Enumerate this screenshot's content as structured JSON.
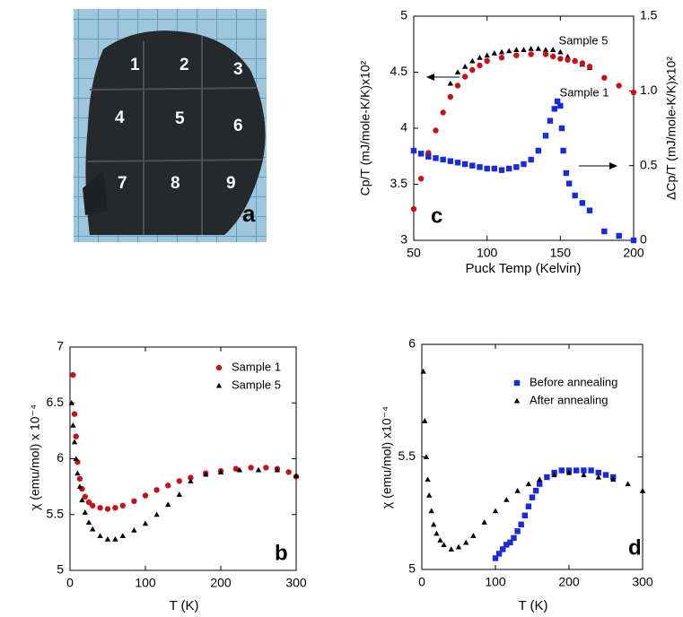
{
  "photo": {
    "labels": [
      "1",
      "2",
      "3",
      "4",
      "5",
      "6",
      "7",
      "8",
      "9"
    ],
    "panel_label": "a"
  },
  "chart_data": [
    {
      "type": "scatter",
      "panel_label": "c",
      "x_label": "Puck Temp (Kelvin)",
      "y_label": "Cp/T (mJ/mole-K/K)x10²",
      "y2_label": "ΔCp/T (mJ/mole-K/K)x10²",
      "xlim": [
        50,
        200
      ],
      "ylim": [
        3,
        5
      ],
      "y2lim": [
        0,
        1.5
      ],
      "xticks": [
        50,
        100,
        150,
        200
      ],
      "yticks": [
        3,
        3.5,
        4,
        4.5,
        5
      ],
      "y2ticks": [
        0,
        0.5,
        {
          "value": 1,
          "label": "1.0"
        },
        1.5
      ],
      "series": [
        {
          "name": "Sample 5",
          "color": "#000000",
          "marker": "triangle",
          "x": [
            75,
            80,
            85,
            90,
            95,
            100,
            105,
            110,
            115,
            120,
            125,
            130,
            135,
            140,
            145,
            150,
            155,
            160,
            165,
            170
          ],
          "values": [
            4.4,
            4.5,
            4.55,
            4.6,
            4.63,
            4.65,
            4.67,
            4.68,
            4.69,
            4.7,
            4.7,
            4.71,
            4.71,
            4.7,
            4.7,
            4.68,
            4.64,
            4.6,
            4.57,
            4.54
          ]
        },
        {
          "name": "Sample 1",
          "color": "#c0141a",
          "marker": "circle",
          "x": [
            50,
            55,
            60,
            65,
            70,
            75,
            80,
            85,
            90,
            95,
            100,
            110,
            120,
            130,
            140,
            145,
            150,
            155,
            160,
            165,
            170,
            180,
            190,
            200
          ],
          "values": [
            3.28,
            3.55,
            3.78,
            3.98,
            4.14,
            4.28,
            4.38,
            4.46,
            4.52,
            4.56,
            4.6,
            4.63,
            4.65,
            4.66,
            4.66,
            4.64,
            4.62,
            4.61,
            4.6,
            4.58,
            4.55,
            4.45,
            4.38,
            4.32
          ]
        },
        {
          "color": "#1a2bd6",
          "marker": "square",
          "axis": "y2",
          "x": [
            50,
            55,
            60,
            65,
            70,
            75,
            80,
            85,
            90,
            95,
            100,
            105,
            110,
            115,
            120,
            125,
            130,
            135,
            140,
            143,
            146,
            148,
            150,
            151,
            152,
            154,
            156,
            160,
            165,
            170,
            180,
            190,
            200
          ],
          "values": [
            0.6,
            0.58,
            0.56,
            0.55,
            0.54,
            0.53,
            0.52,
            0.51,
            0.5,
            0.49,
            0.48,
            0.48,
            0.47,
            0.48,
            0.49,
            0.51,
            0.54,
            0.6,
            0.7,
            0.8,
            0.88,
            0.93,
            0.9,
            0.75,
            0.6,
            0.45,
            0.38,
            0.3,
            0.25,
            0.2,
            0.06,
            0.03,
            0.0
          ]
        }
      ]
    },
    {
      "type": "scatter",
      "panel_label": "b",
      "x_label": "T (K)",
      "y_label": "χ (emu/mol) x 10⁻⁴",
      "xlim": [
        0,
        300
      ],
      "ylim": [
        5,
        7
      ],
      "xticks": [
        0,
        100,
        200,
        300
      ],
      "yticks": [
        5,
        5.5,
        6,
        6.5,
        7
      ],
      "legend": "upper right",
      "series": [
        {
          "name": "Sample 1",
          "color": "#c0141a",
          "marker": "circle",
          "x": [
            4,
            6,
            8,
            10,
            13,
            16,
            20,
            25,
            30,
            40,
            50,
            60,
            70,
            85,
            100,
            115,
            130,
            145,
            160,
            180,
            200,
            220,
            240,
            260,
            275,
            290,
            300
          ],
          "values": [
            6.75,
            6.4,
            6.2,
            5.97,
            5.82,
            5.73,
            5.66,
            5.61,
            5.58,
            5.56,
            5.55,
            5.56,
            5.58,
            5.62,
            5.67,
            5.72,
            5.76,
            5.8,
            5.83,
            5.87,
            5.89,
            5.91,
            5.92,
            5.92,
            5.91,
            5.88,
            5.84
          ]
        },
        {
          "name": "Sample 5",
          "color": "#000000",
          "marker": "triangle",
          "x": [
            2,
            4,
            6,
            8,
            10,
            13,
            16,
            20,
            25,
            30,
            40,
            50,
            60,
            70,
            85,
            100,
            115,
            130,
            145,
            160,
            180,
            200,
            225,
            250,
            275,
            300
          ],
          "values": [
            6.5,
            6.3,
            6.15,
            6.0,
            5.87,
            5.75,
            5.63,
            5.52,
            5.43,
            5.37,
            5.31,
            5.28,
            5.28,
            5.31,
            5.36,
            5.42,
            5.5,
            5.59,
            5.68,
            5.8,
            5.86,
            5.88,
            5.9,
            5.9,
            5.9,
            5.85
          ]
        }
      ]
    },
    {
      "type": "scatter",
      "panel_label": "d",
      "x_label": "T (K)",
      "y_label": "χ (emu/mol) x10⁻⁴",
      "xlim": [
        0,
        300
      ],
      "ylim": [
        5,
        6
      ],
      "xticks": [
        0,
        100,
        200,
        300
      ],
      "yticks": [
        5,
        5.5,
        6
      ],
      "legend": "upper right",
      "series": [
        {
          "name": "Before annealing",
          "color": "#1a2bd6",
          "marker": "square",
          "x": [
            100,
            105,
            110,
            115,
            120,
            125,
            130,
            135,
            140,
            145,
            150,
            155,
            160,
            170,
            180,
            190,
            200,
            210,
            220,
            230,
            240,
            250,
            260
          ],
          "values": [
            5.05,
            5.07,
            5.09,
            5.11,
            5.12,
            5.14,
            5.17,
            5.2,
            5.24,
            5.28,
            5.32,
            5.35,
            5.38,
            5.41,
            5.43,
            5.44,
            5.44,
            5.44,
            5.44,
            5.44,
            5.43,
            5.42,
            5.41
          ]
        },
        {
          "name": "After annealing",
          "color": "#000000",
          "marker": "triangle",
          "x": [
            2,
            4,
            6,
            8,
            10,
            13,
            16,
            20,
            25,
            30,
            40,
            50,
            60,
            70,
            85,
            100,
            115,
            130,
            145,
            160,
            180,
            200,
            220,
            240,
            260,
            280,
            300
          ],
          "values": [
            5.88,
            5.66,
            5.5,
            5.4,
            5.33,
            5.26,
            5.2,
            5.16,
            5.13,
            5.11,
            5.09,
            5.1,
            5.12,
            5.15,
            5.21,
            5.26,
            5.31,
            5.35,
            5.38,
            5.4,
            5.42,
            5.43,
            5.42,
            5.41,
            5.4,
            5.38,
            5.35
          ]
        }
      ]
    }
  ]
}
